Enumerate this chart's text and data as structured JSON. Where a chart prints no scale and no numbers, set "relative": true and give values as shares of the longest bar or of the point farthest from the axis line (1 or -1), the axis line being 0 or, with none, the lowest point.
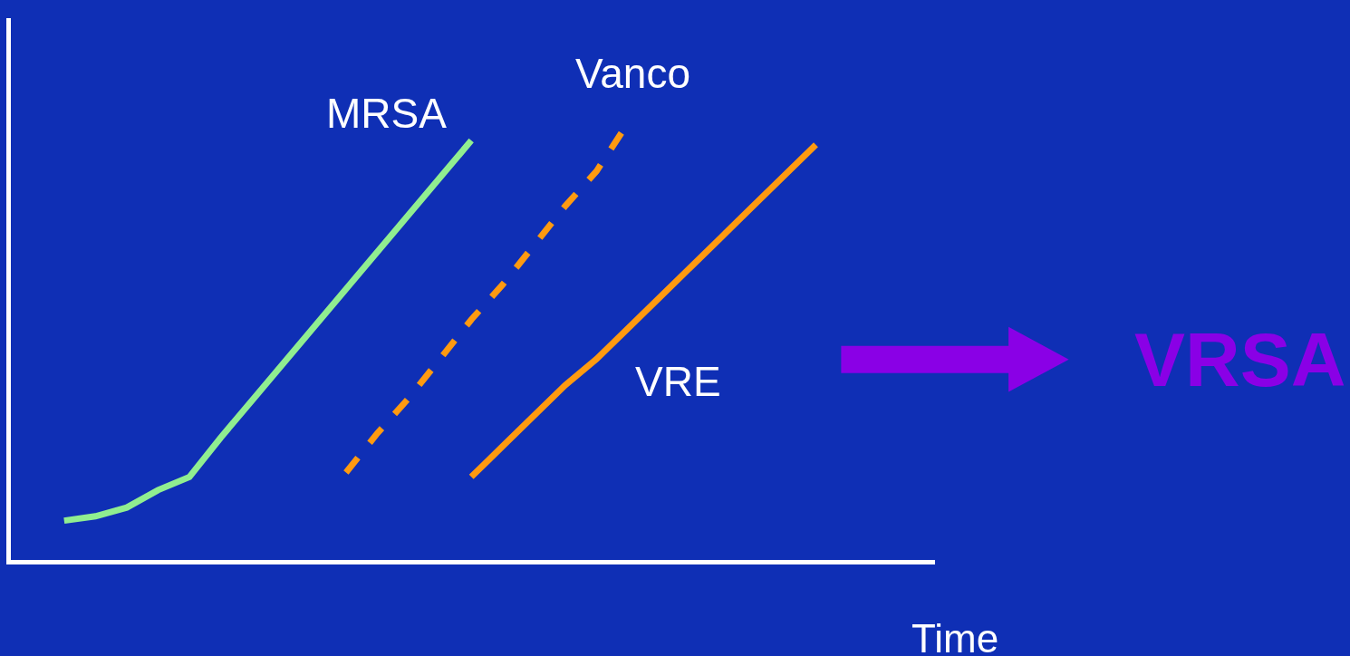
{
  "chart_data": {
    "type": "line",
    "relative": true,
    "xlabel": "Time",
    "grid": false,
    "legend": false,
    "marker": "none",
    "categories": [
      null,
      null,
      null,
      null,
      null,
      null,
      null,
      null,
      null,
      null,
      null,
      null,
      null,
      null,
      null,
      null,
      null,
      null,
      null,
      null,
      null,
      null,
      null,
      null,
      null
    ],
    "series": [
      {
        "name": "MRSA",
        "color": "#90ee90",
        "line_style": "solid",
        "values": [
          0.09,
          0.1,
          0.12,
          0.16,
          0.19,
          0.28,
          0.365,
          0.45,
          0.535,
          0.62,
          0.705,
          0.79,
          0.875,
          0.96,
          null,
          null,
          null,
          null,
          null,
          null,
          null,
          null,
          null,
          null,
          null
        ]
      },
      {
        "name": "Vanco",
        "color": "#ff9a10",
        "line_style": "dashed",
        "values": [
          null,
          null,
          null,
          null,
          null,
          null,
          null,
          null,
          null,
          0.2,
          0.29,
          0.37,
          0.46,
          0.55,
          0.63,
          0.72,
          0.81,
          0.89,
          1.0,
          null,
          null,
          null,
          null,
          null,
          null
        ]
      },
      {
        "name": "VRE",
        "color": "#ff9a10",
        "line_style": "solid",
        "values": [
          null,
          null,
          null,
          null,
          null,
          null,
          null,
          null,
          null,
          null,
          null,
          null,
          null,
          0.19,
          0.26,
          0.33,
          0.4,
          0.46,
          0.53,
          0.6,
          0.67,
          0.74,
          0.81,
          0.88,
          0.95
        ]
      }
    ],
    "annotations": [
      "VRSA"
    ]
  }
}
